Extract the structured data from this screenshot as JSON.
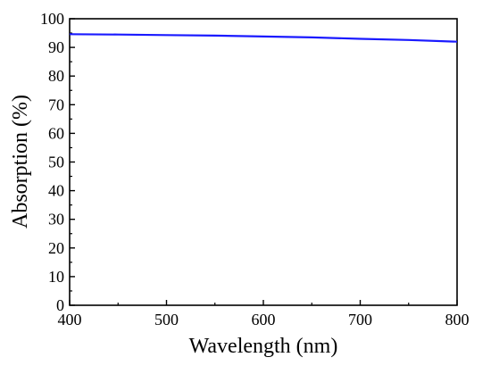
{
  "chart_data": {
    "type": "line",
    "title": "",
    "xlabel": "Wavelength (nm)",
    "ylabel": "Absorption (%)",
    "xlim": [
      400,
      800
    ],
    "ylim": [
      0,
      100
    ],
    "xticks": [
      400,
      500,
      600,
      700,
      800
    ],
    "yticks": [
      0,
      10,
      20,
      30,
      40,
      50,
      60,
      70,
      80,
      90,
      100
    ],
    "grid": false,
    "legend": "none",
    "series": [
      {
        "color": "#1a1aff",
        "x": [
          400,
          450,
          500,
          550,
          600,
          650,
          700,
          750,
          800
        ],
        "y": [
          94.6,
          94.5,
          94.3,
          94.1,
          93.8,
          93.5,
          93.0,
          92.6,
          92.0
        ]
      }
    ]
  }
}
